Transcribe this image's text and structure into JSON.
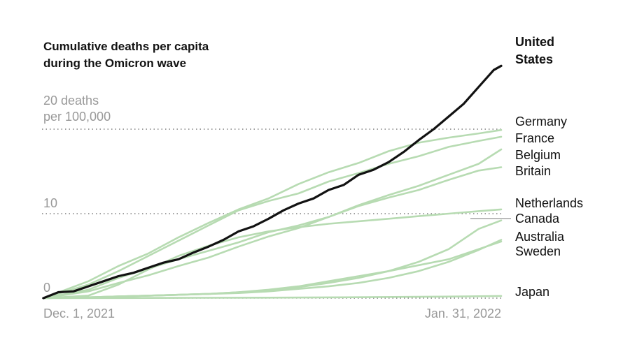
{
  "chart_data": {
    "type": "line",
    "title": "Cumulative deaths per capita during the Omicron wave",
    "title_lines": [
      "Cumulative deaths per capita",
      "during the Omicron wave"
    ],
    "ylabel": "",
    "xlabel": "",
    "unit_lines": [
      "20 deaths",
      "per 100,000"
    ],
    "ylim": [
      0,
      22
    ],
    "x_range_days": [
      0,
      61
    ],
    "gridlines": [
      {
        "value": 0,
        "label": "0"
      },
      {
        "value": 10,
        "label": "10"
      },
      {
        "value": 20,
        "label": "20 deaths per 100,000"
      }
    ],
    "x_tick_labels": [
      "Dec. 1, 2021",
      "Jan. 31, 2022"
    ],
    "series": [
      {
        "name": "United States",
        "name_lines": [
          "United",
          "States"
        ],
        "highlight": true,
        "points": [
          [
            0,
            0
          ],
          [
            2,
            0.7
          ],
          [
            4,
            0.8
          ],
          [
            6,
            1.4
          ],
          [
            8,
            2.0
          ],
          [
            10,
            2.6
          ],
          [
            12,
            3.0
          ],
          [
            14,
            3.6
          ],
          [
            16,
            4.2
          ],
          [
            18,
            4.6
          ],
          [
            20,
            5.4
          ],
          [
            22,
            6.1
          ],
          [
            24,
            6.9
          ],
          [
            26,
            7.9
          ],
          [
            28,
            8.5
          ],
          [
            30,
            9.4
          ],
          [
            32,
            10.4
          ],
          [
            34,
            11.2
          ],
          [
            36,
            11.8
          ],
          [
            38,
            12.8
          ],
          [
            40,
            13.4
          ],
          [
            42,
            14.6
          ],
          [
            44,
            15.2
          ],
          [
            46,
            16.1
          ],
          [
            48,
            17.3
          ],
          [
            50,
            18.7
          ],
          [
            52,
            20.0
          ],
          [
            54,
            21.5
          ],
          [
            56,
            23.0
          ],
          [
            58,
            25.0
          ],
          [
            60,
            27.0
          ],
          [
            61,
            27.5
          ]
        ]
      },
      {
        "name": "Germany",
        "name_lines": [
          "Germany"
        ],
        "highlight": false,
        "points": [
          [
            0,
            0
          ],
          [
            6,
            2.0
          ],
          [
            10,
            3.8
          ],
          [
            14,
            5.3
          ],
          [
            18,
            7.2
          ],
          [
            22,
            8.9
          ],
          [
            26,
            10.5
          ],
          [
            30,
            11.8
          ],
          [
            34,
            13.5
          ],
          [
            38,
            14.9
          ],
          [
            42,
            16.0
          ],
          [
            46,
            17.4
          ],
          [
            50,
            18.4
          ],
          [
            54,
            19.0
          ],
          [
            58,
            19.5
          ],
          [
            61,
            19.9
          ]
        ]
      },
      {
        "name": "France",
        "name_lines": [
          "France"
        ],
        "highlight": false,
        "points": [
          [
            0,
            0
          ],
          [
            6,
            1.0
          ],
          [
            10,
            2.4
          ],
          [
            14,
            3.5
          ],
          [
            18,
            4.6
          ],
          [
            22,
            5.6
          ],
          [
            26,
            6.6
          ],
          [
            30,
            7.8
          ],
          [
            34,
            8.6
          ],
          [
            38,
            9.6
          ],
          [
            42,
            11.0
          ],
          [
            46,
            12.2
          ],
          [
            50,
            13.3
          ],
          [
            54,
            14.6
          ],
          [
            58,
            15.9
          ],
          [
            61,
            17.6
          ]
        ]
      },
      {
        "name": "Belgium",
        "name_lines": [
          "Belgium"
        ],
        "highlight": false,
        "points": [
          [
            0,
            0
          ],
          [
            6,
            1.6
          ],
          [
            10,
            3.2
          ],
          [
            14,
            5.0
          ],
          [
            18,
            6.8
          ],
          [
            22,
            8.6
          ],
          [
            26,
            10.4
          ],
          [
            30,
            11.5
          ],
          [
            34,
            12.4
          ],
          [
            38,
            13.8
          ],
          [
            42,
            14.8
          ],
          [
            46,
            15.9
          ],
          [
            50,
            16.8
          ],
          [
            54,
            17.9
          ],
          [
            58,
            18.6
          ],
          [
            61,
            19.1
          ]
        ]
      },
      {
        "name": "Britain",
        "name_lines": [
          "Britain"
        ],
        "highlight": false,
        "points": [
          [
            0,
            0
          ],
          [
            6,
            0.8
          ],
          [
            10,
            1.8
          ],
          [
            14,
            2.7
          ],
          [
            18,
            3.8
          ],
          [
            22,
            4.8
          ],
          [
            26,
            6.1
          ],
          [
            30,
            7.3
          ],
          [
            34,
            8.3
          ],
          [
            38,
            9.6
          ],
          [
            42,
            10.9
          ],
          [
            46,
            11.9
          ],
          [
            50,
            12.8
          ],
          [
            54,
            14.0
          ],
          [
            58,
            15.1
          ],
          [
            61,
            15.5
          ]
        ]
      },
      {
        "name": "Netherlands",
        "name_lines": [
          "Netherlands"
        ],
        "highlight": false,
        "points": [
          [
            0,
            0
          ],
          [
            6,
            0.1
          ],
          [
            10,
            0.2
          ],
          [
            14,
            0.3
          ],
          [
            18,
            0.4
          ],
          [
            22,
            0.5
          ],
          [
            26,
            0.7
          ],
          [
            30,
            0.9
          ],
          [
            34,
            1.3
          ],
          [
            38,
            1.8
          ],
          [
            42,
            2.4
          ],
          [
            46,
            3.2
          ],
          [
            50,
            4.3
          ],
          [
            54,
            5.8
          ],
          [
            58,
            8.2
          ],
          [
            61,
            9.2
          ]
        ]
      },
      {
        "name": "Canada",
        "name_lines": [
          "Canada"
        ],
        "highlight": false,
        "points": [
          [
            0,
            0
          ],
          [
            6,
            0.3
          ],
          [
            10,
            1.6
          ],
          [
            14,
            3.4
          ],
          [
            18,
            5.0
          ],
          [
            22,
            6.2
          ],
          [
            26,
            7.2
          ],
          [
            30,
            7.9
          ],
          [
            34,
            8.4
          ],
          [
            38,
            8.8
          ],
          [
            42,
            9.1
          ],
          [
            46,
            9.4
          ],
          [
            50,
            9.7
          ],
          [
            54,
            10.0
          ],
          [
            58,
            10.3
          ],
          [
            61,
            10.5
          ]
        ]
      },
      {
        "name": "Australia",
        "name_lines": [
          "Australia"
        ],
        "highlight": false,
        "points": [
          [
            0,
            0
          ],
          [
            6,
            0.1
          ],
          [
            10,
            0.2
          ],
          [
            14,
            0.3
          ],
          [
            18,
            0.4
          ],
          [
            22,
            0.5
          ],
          [
            26,
            0.6
          ],
          [
            30,
            0.8
          ],
          [
            34,
            1.1
          ],
          [
            38,
            1.4
          ],
          [
            42,
            1.8
          ],
          [
            46,
            2.4
          ],
          [
            50,
            3.2
          ],
          [
            54,
            4.3
          ],
          [
            58,
            5.7
          ],
          [
            61,
            6.9
          ]
        ]
      },
      {
        "name": "Sweden",
        "name_lines": [
          "Sweden"
        ],
        "highlight": false,
        "points": [
          [
            0,
            0
          ],
          [
            6,
            0.1
          ],
          [
            10,
            0.2
          ],
          [
            14,
            0.3
          ],
          [
            18,
            0.4
          ],
          [
            22,
            0.5
          ],
          [
            26,
            0.7
          ],
          [
            30,
            1.0
          ],
          [
            34,
            1.4
          ],
          [
            38,
            2.0
          ],
          [
            42,
            2.6
          ],
          [
            46,
            3.2
          ],
          [
            50,
            3.9
          ],
          [
            54,
            4.6
          ],
          [
            58,
            5.8
          ],
          [
            61,
            6.7
          ]
        ]
      },
      {
        "name": "Japan",
        "name_lines": [
          "Japan"
        ],
        "highlight": false,
        "points": [
          [
            0,
            0
          ],
          [
            10,
            0.02
          ],
          [
            20,
            0.04
          ],
          [
            30,
            0.06
          ],
          [
            40,
            0.1
          ],
          [
            50,
            0.16
          ],
          [
            56,
            0.2
          ],
          [
            61,
            0.26
          ]
        ]
      }
    ]
  }
}
